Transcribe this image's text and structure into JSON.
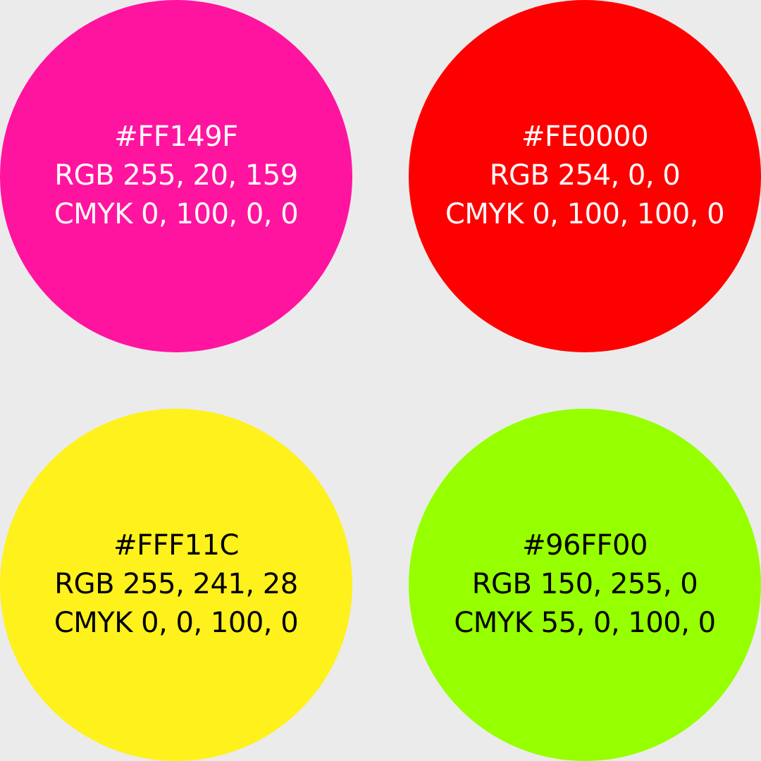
{
  "swatches": [
    {
      "hex": "#FF149F",
      "rgb": "RGB 255, 20, 159",
      "cmyk": "CMYK 0, 100, 0, 0",
      "fill": "#FF149F",
      "text_color": "#FFFFFF"
    },
    {
      "hex": "#FE0000",
      "rgb": "RGB 254, 0, 0",
      "cmyk": "CMYK 0, 100, 100, 0",
      "fill": "#FE0000",
      "text_color": "#FFFFFF"
    },
    {
      "hex": "#FFF11C",
      "rgb": "RGB 255, 241, 28",
      "cmyk": "CMYK 0, 0, 100, 0",
      "fill": "#FFF11C",
      "text_color": "#000000"
    },
    {
      "hex": "#96FF00",
      "rgb": "RGB 150, 255, 0",
      "cmyk": "CMYK 55, 0, 100, 0",
      "fill": "#96FF00",
      "text_color": "#000000"
    }
  ],
  "background": "#EBEBEB"
}
